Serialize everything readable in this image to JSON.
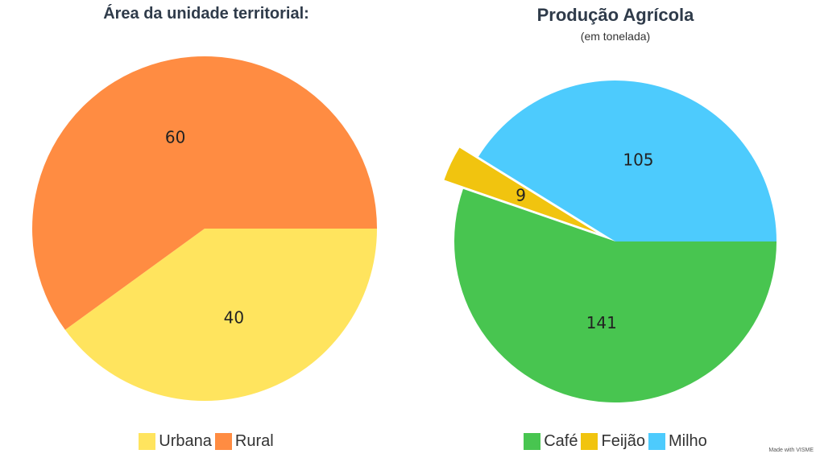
{
  "chart_data": [
    {
      "type": "pie",
      "title": "Área da unidade territorial:",
      "categories": [
        "Urbana",
        "Rural"
      ],
      "values": [
        40,
        60
      ],
      "colors": [
        "#ffe45e",
        "#ff8c42"
      ],
      "legend_position": "bottom"
    },
    {
      "type": "pie",
      "title": "Produção Agrícola",
      "subtitle": "(em tonelada)",
      "categories": [
        "Café",
        "Feijão",
        "Milho"
      ],
      "values": [
        141,
        9,
        105
      ],
      "colors": [
        "#48c550",
        "#f1c40f",
        "#4dcbfd"
      ],
      "exploded": [
        "Feijão"
      ],
      "legend_position": "bottom"
    }
  ],
  "credit": "Made with VISME"
}
